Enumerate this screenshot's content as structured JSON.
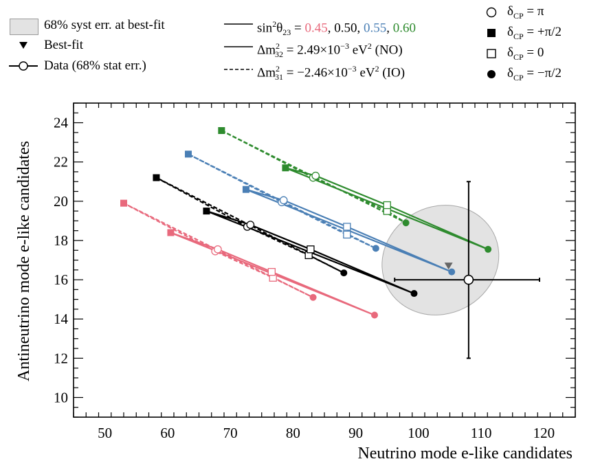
{
  "legend": {
    "syst": "68% syst err. at best-fit",
    "bestfit": "Best-fit",
    "data": "Data (68% stat err.)",
    "sin_prefix": "sin",
    "sin_sup": "2",
    "sin_theta": "θ",
    "sin_sub": "23",
    "sin_eq": " = ",
    "s1": "0.45",
    "s2": "0.50",
    "s3": "0.55",
    "s4": "0.60",
    "sep": ", ",
    "no_label_pre": "Δm",
    "no_sup": "2",
    "no_sub": "32",
    "no_label_post": " = 2.49×10",
    "no_exp": "−3",
    "no_unit": " eV",
    "no_unit_sup": "2",
    "no_tag": " (NO)",
    "io_label_pre": "Δm",
    "io_sup": "2",
    "io_sub": "31",
    "io_label_post": " = −2.46×10",
    "io_exp": "−3",
    "io_unit": " eV",
    "io_unit_sup": "2",
    "io_tag": " (IO)",
    "dcp_sym": "δ",
    "dcp_sub": "CP",
    "dcp_pi": " = π",
    "dcp_pi2": " = +π/2",
    "dcp_0": " = 0",
    "dcp_mpi2": " = −π/2"
  },
  "colors": {
    "s045": "#e8697c",
    "s050": "#000000",
    "s055": "#4a7fb5",
    "s060": "#2e8b2e",
    "band": "#e3e3e3",
    "bestfit": "#666666"
  },
  "chart_data": {
    "type": "scatter",
    "xlabel": "Neutrino mode e-like candidates",
    "ylabel": "Antineutrino mode e-like candidates",
    "xlim": [
      45,
      125
    ],
    "ylim": [
      9,
      25
    ],
    "xticks": [
      "50",
      "60",
      "70",
      "80",
      "90",
      "100",
      "110",
      "120"
    ],
    "yticks": [
      "10",
      "12",
      "14",
      "16",
      "18",
      "20",
      "22",
      "24"
    ],
    "data_point": {
      "x": 108,
      "y": 16,
      "xerr": [
        11.8,
        11.3
      ],
      "yerr": [
        4,
        5
      ]
    },
    "best_fit": {
      "x": 104.8,
      "y": 16.7
    },
    "syst_ellipse": {
      "cx": 103.5,
      "cy": 17.0,
      "rx_data": 9.5,
      "ry_data": 1.3,
      "angle_deg": -27
    },
    "series": [
      {
        "name": "0.45",
        "color": "#e8697c",
        "NO": {
          "plus_pi2": [
            60.5,
            18.4
          ],
          "pi": [
            68.0,
            17.55
          ],
          "zero": [
            76.6,
            16.4
          ],
          "minus_pi2": [
            93.0,
            14.2
          ]
        },
        "IO": {
          "plus_pi2": [
            53.0,
            19.9
          ],
          "pi": [
            67.6,
            17.45
          ],
          "zero": [
            76.8,
            16.1
          ],
          "minus_pi2": [
            83.2,
            15.1
          ]
        }
      },
      {
        "name": "0.50",
        "color": "#000000",
        "NO": {
          "plus_pi2": [
            66.2,
            19.5
          ],
          "pi": [
            73.2,
            18.8
          ],
          "zero": [
            82.8,
            17.55
          ],
          "minus_pi2": [
            99.3,
            15.3
          ]
        },
        "IO": {
          "plus_pi2": [
            58.2,
            21.2
          ],
          "pi": [
            72.7,
            18.7
          ],
          "zero": [
            82.5,
            17.25
          ],
          "minus_pi2": [
            88.1,
            16.35
          ]
        }
      },
      {
        "name": "0.55",
        "color": "#4a7fb5",
        "NO": {
          "plus_pi2": [
            72.5,
            20.6
          ],
          "pi": [
            78.5,
            20.05
          ],
          "zero": [
            88.6,
            18.7
          ],
          "minus_pi2": [
            105.3,
            16.4
          ]
        },
        "IO": {
          "plus_pi2": [
            63.3,
            22.4
          ],
          "pi": [
            78.2,
            19.95
          ],
          "zero": [
            88.6,
            18.3
          ],
          "minus_pi2": [
            93.2,
            17.6
          ]
        }
      },
      {
        "name": "0.60",
        "color": "#2e8b2e",
        "NO": {
          "plus_pi2": [
            78.8,
            21.7
          ],
          "pi": [
            83.6,
            21.3
          ],
          "zero": [
            95.0,
            19.8
          ],
          "minus_pi2": [
            111.1,
            17.55
          ]
        },
        "IO": {
          "plus_pi2": [
            68.6,
            23.6
          ],
          "pi": [
            83.2,
            21.2
          ],
          "zero": [
            95.0,
            19.5
          ],
          "minus_pi2": [
            98.0,
            18.9
          ]
        }
      }
    ]
  }
}
